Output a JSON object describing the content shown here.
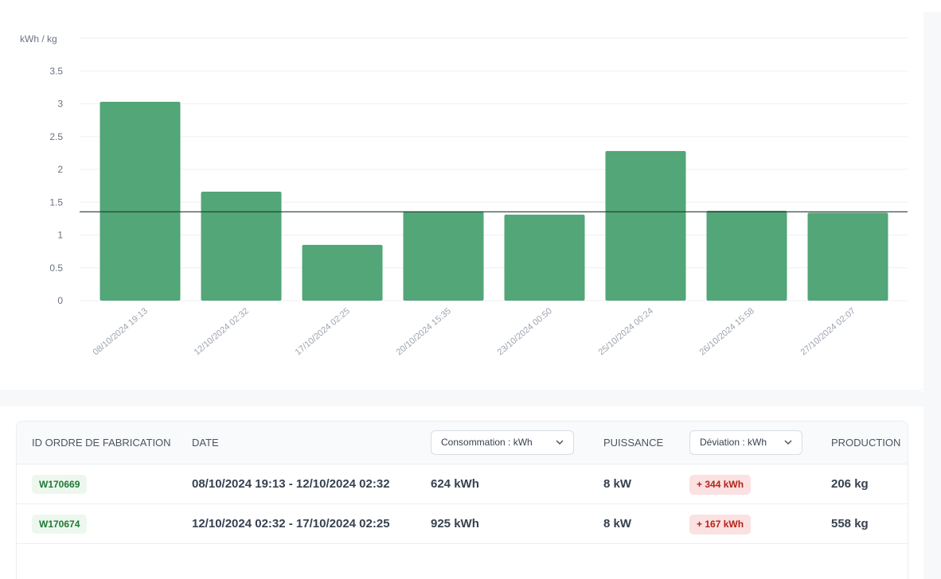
{
  "chart_data": {
    "type": "bar",
    "ylabel": "kWh / kg",
    "ylim": [
      0,
      4
    ],
    "yticks": [
      "0",
      "0.5",
      "1",
      "1.5",
      "2",
      "2.5",
      "3",
      "3.5"
    ],
    "categories": [
      "08/10/2024 19:13",
      "12/10/2024 02:32",
      "17/10/2024 02:25",
      "20/10/2024 15:35",
      "23/10/2024 00:50",
      "25/10/2024 00:24",
      "26/10/2024 15:58",
      "27/10/2024 02:07"
    ],
    "values": [
      3.03,
      1.66,
      0.85,
      1.36,
      1.31,
      2.28,
      1.37,
      1.34
    ],
    "reference_line": 1.36,
    "bar_color": "#52a677",
    "reference_color": "#1f3b2c",
    "grid": true
  },
  "table": {
    "headers": {
      "id": "ID ORDRE DE FABRICATION",
      "date": "DATE",
      "consumption": "Consommation : kWh",
      "power": "PUISSANCE",
      "deviation": "Déviation : kWh",
      "production": "PRODUCTION"
    },
    "rows": [
      {
        "id": "W170669",
        "date": "08/10/2024 19:13 - 12/10/2024 02:32",
        "consumption": "624 kWh",
        "power": "8 kW",
        "deviation": "+ 344 kWh",
        "production": "206 kg"
      },
      {
        "id": "W170674",
        "date": "12/10/2024 02:32 - 17/10/2024 02:25",
        "consumption": "925 kWh",
        "power": "8 kW",
        "deviation": "+ 167 kWh",
        "production": "558 kg"
      }
    ],
    "badge_colors": {
      "id_text": "#1e7a34",
      "deviation_text": "#b42318"
    }
  }
}
